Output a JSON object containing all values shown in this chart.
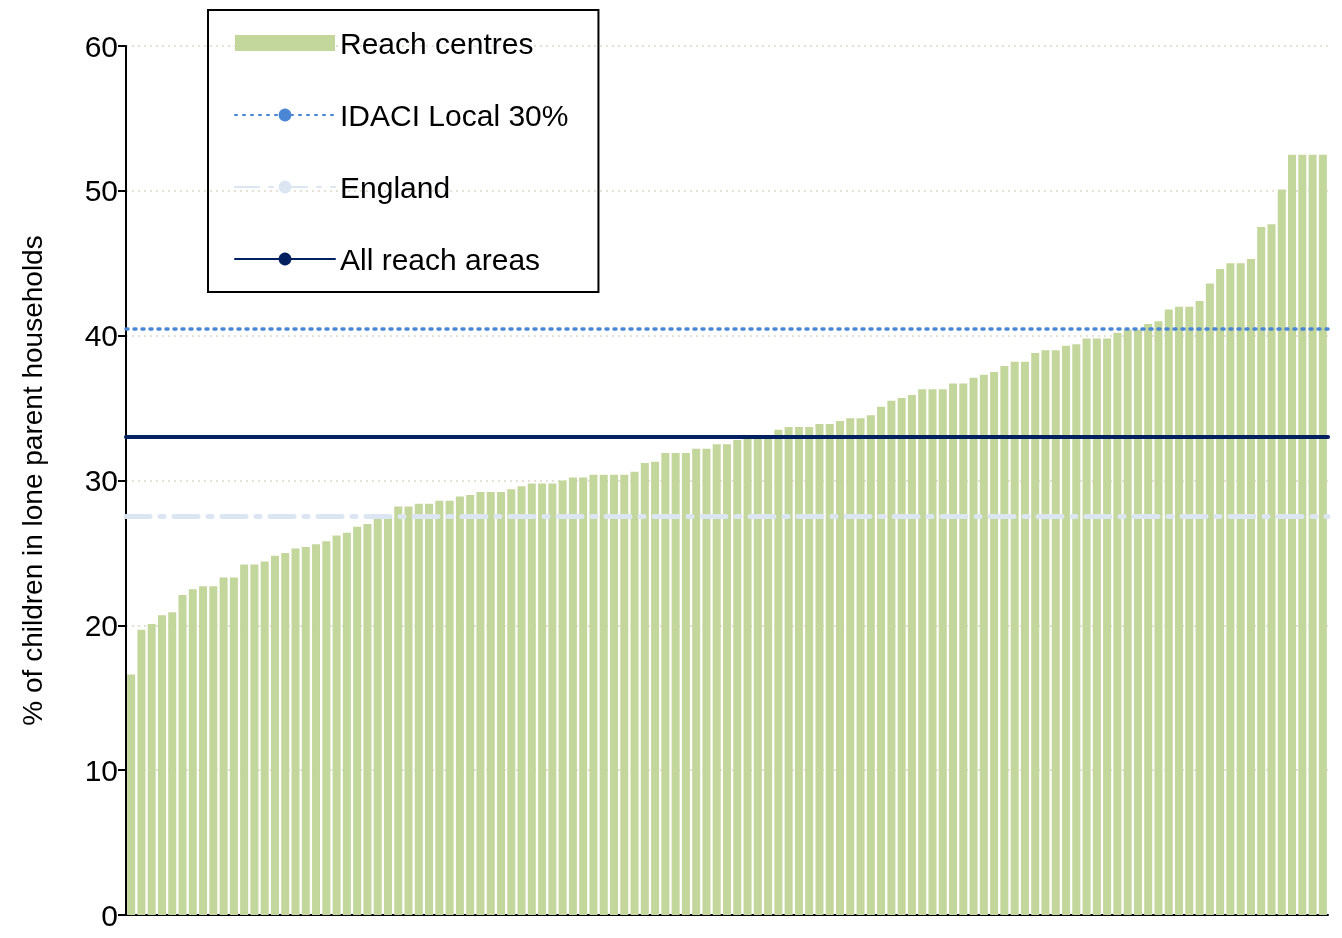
{
  "chart_data": {
    "type": "bar",
    "ylabel": "% of children in lone parent households",
    "categories": [
      null,
      null,
      null,
      null,
      null,
      null,
      null,
      null,
      null,
      null,
      null,
      null,
      null,
      null,
      null,
      null,
      null,
      null,
      null,
      null,
      null,
      null,
      null,
      null,
      null,
      null,
      null,
      null,
      null,
      null,
      null,
      null,
      null,
      null,
      null,
      null,
      null,
      null,
      null,
      null,
      null,
      null,
      null,
      null,
      null,
      null,
      null,
      null,
      null,
      null,
      null,
      null,
      null,
      null,
      null,
      null,
      null,
      null,
      null,
      null,
      null,
      null,
      null,
      null,
      null,
      null,
      null,
      null,
      null,
      null,
      null,
      null,
      null,
      null,
      null,
      null,
      null,
      null,
      null,
      null,
      null,
      null,
      null,
      null,
      null,
      null,
      null,
      null,
      null,
      null,
      null,
      null,
      null,
      null,
      null,
      null,
      null,
      null,
      null,
      null,
      null,
      null,
      null,
      null,
      null,
      null,
      null,
      null,
      null,
      null,
      null,
      null,
      null,
      null,
      null,
      null,
      null
    ],
    "series": [
      {
        "name": "Reach centres",
        "color": "#c3d69b",
        "values": [
          16.6,
          19.7,
          20.1,
          20.7,
          20.9,
          22.1,
          22.5,
          22.7,
          22.7,
          23.3,
          23.3,
          24.2,
          24.2,
          24.4,
          24.8,
          25.0,
          25.3,
          25.4,
          25.6,
          25.8,
          26.2,
          26.4,
          26.8,
          27.0,
          27.4,
          27.5,
          28.2,
          28.2,
          28.4,
          28.4,
          28.6,
          28.6,
          28.9,
          29.0,
          29.2,
          29.2,
          29.2,
          29.4,
          29.6,
          29.8,
          29.8,
          29.8,
          30.0,
          30.2,
          30.2,
          30.4,
          30.4,
          30.4,
          30.4,
          30.6,
          31.2,
          31.3,
          31.9,
          31.9,
          31.9,
          32.2,
          32.2,
          32.5,
          32.5,
          32.8,
          32.9,
          33.0,
          33.0,
          33.5,
          33.7,
          33.7,
          33.7,
          33.9,
          33.9,
          34.1,
          34.3,
          34.3,
          34.5,
          35.1,
          35.5,
          35.7,
          35.9,
          36.3,
          36.3,
          36.3,
          36.7,
          36.7,
          37.1,
          37.3,
          37.5,
          37.9,
          38.2,
          38.2,
          38.8,
          39.0,
          39.0,
          39.3,
          39.4,
          39.8,
          39.8,
          39.8,
          40.2,
          40.4,
          40.4,
          40.8,
          41.0,
          41.8,
          42.0,
          42.0,
          42.4,
          43.6,
          44.6,
          45.0,
          45.0,
          45.3,
          47.5,
          47.7,
          50.1,
          52.5,
          52.5,
          52.5,
          52.5
        ]
      }
    ],
    "ref_lines": [
      {
        "axis": "y",
        "value": 40.5,
        "label": "IDACI Local 30%",
        "color": "#4a86d4",
        "line_style": "dotted"
      },
      {
        "axis": "y",
        "value": 27.5,
        "label": "England",
        "color": "#dce6f2",
        "line_style": "dashed"
      },
      {
        "axis": "y",
        "value": 33.0,
        "label": "All reach areas",
        "color": "#002060",
        "line_style": "solid"
      }
    ],
    "ylim": [
      0,
      60
    ],
    "yticks": [
      0,
      10,
      20,
      30,
      40,
      50,
      60
    ],
    "grid": "y",
    "legend": "top left"
  }
}
